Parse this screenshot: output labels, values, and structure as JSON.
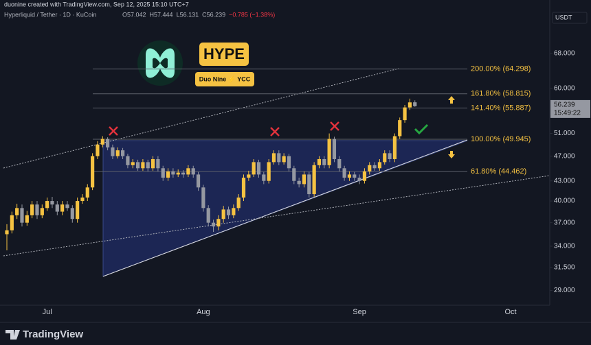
{
  "chart_data": {
    "type": "candlestick",
    "credit": "duonine created with TradingView.com, Sep 12, 2025 15:10 UTC+7",
    "symbol": "Hyperliquid / Tether · 1D · KuCoin",
    "ohlc_legend": [
      "O57.042",
      "H57.444",
      "L56.131",
      "C56.239",
      "−0.785 (−1.38%)"
    ],
    "currency": "USDT",
    "badge": "HYPE",
    "sub_badge": "Duo Nine ⚡ YCC",
    "countdown": "15:49:22",
    "watermark": "TradingView",
    "log_scale": true,
    "grid": false,
    "up_color": "#f5c242",
    "down_color": "#9598a1",
    "categories": [
      null,
      null,
      null,
      null,
      null,
      null,
      null,
      null,
      "Jul",
      null,
      null,
      null,
      null,
      null,
      null,
      null,
      null,
      null,
      null,
      null,
      null,
      null,
      null,
      null,
      null,
      null,
      null,
      null,
      null,
      null,
      null,
      null,
      null,
      null,
      null,
      null,
      null,
      null,
      null,
      "Aug",
      null,
      null,
      null,
      null,
      null,
      null,
      null,
      null,
      null,
      null,
      null,
      null,
      null,
      null,
      null,
      null,
      null,
      null,
      null,
      null,
      null,
      null,
      null,
      null,
      null,
      null,
      null,
      null,
      null,
      null,
      "Sep",
      null,
      null,
      null,
      null,
      null,
      null,
      null,
      null,
      null,
      null,
      null,
      null,
      null,
      null,
      null,
      null,
      null,
      null,
      null,
      null,
      null,
      null,
      null,
      null,
      null,
      null,
      null,
      null,
      null,
      "Oct",
      null,
      null,
      null,
      null,
      null,
      null,
      null
    ],
    "open": [
      35.5,
      36,
      38,
      39,
      37,
      38,
      39.5,
      38,
      39,
      40,
      39.5,
      38.5,
      39.5,
      39,
      37.5,
      40,
      40.5,
      42,
      47,
      49,
      50,
      48.5,
      47,
      48,
      47,
      45.5,
      46,
      45,
      46,
      45,
      46.5,
      45,
      43.5,
      44.5,
      44,
      44.3,
      44,
      45,
      44,
      42,
      39,
      37,
      36.5,
      37.5,
      38.8,
      38,
      39,
      40.5,
      43.5,
      44,
      46,
      44,
      43,
      46,
      47.5,
      46,
      47,
      45,
      43,
      42.5,
      44,
      41,
      45.5,
      46.5,
      45.5,
      50,
      46.5,
      45,
      43.5,
      44,
      43.5,
      43,
      44.5,
      45.5,
      45,
      46,
      47.5,
      46.5,
      50.5,
      53.5,
      56,
      57.042,
      null,
      null,
      null,
      null,
      null,
      null,
      null,
      null,
      null,
      null,
      null,
      null,
      null,
      null,
      null,
      null,
      null,
      null,
      null,
      null,
      null,
      null,
      null,
      null,
      null,
      null
    ],
    "high": [
      36.8,
      38.5,
      39.6,
      39.5,
      38.6,
      40,
      40,
      39.5,
      40.5,
      40.6,
      40,
      40,
      40,
      39.4,
      40.5,
      41,
      42.5,
      47.5,
      49.6,
      50.5,
      50.3,
      49,
      48.5,
      48.4,
      47.4,
      46.5,
      46.4,
      46.5,
      46.4,
      47,
      47,
      45.4,
      45,
      45,
      44.8,
      44.7,
      45.5,
      45.4,
      44.4,
      42.4,
      39.4,
      37.4,
      38,
      39.3,
      39.2,
      39.5,
      41,
      44,
      44.6,
      46.5,
      46.4,
      44.4,
      46.5,
      48,
      48,
      47.5,
      47.4,
      45.4,
      43.5,
      44.5,
      44.4,
      46,
      47,
      47,
      51,
      50.4,
      47,
      45.4,
      44.5,
      44.4,
      44,
      45,
      46,
      46,
      46.5,
      48,
      48,
      51,
      54,
      56.5,
      57.8,
      57.444,
      null,
      null,
      null,
      null,
      null,
      null,
      null,
      null,
      null,
      null,
      null,
      null,
      null,
      null,
      null,
      null,
      null,
      null,
      null,
      null,
      null,
      null,
      null,
      null,
      null,
      null
    ],
    "low": [
      33.5,
      35.6,
      37.5,
      36.5,
      36.6,
      37.6,
      37.5,
      37.6,
      38.6,
      39,
      38,
      38,
      38.6,
      37,
      37,
      39.6,
      40,
      41.6,
      46.5,
      48.5,
      48,
      46.5,
      46.6,
      46.5,
      45,
      45,
      44.6,
      44.6,
      44.5,
      44.6,
      44.5,
      43,
      43,
      43.5,
      43.6,
      43.5,
      43.6,
      43.5,
      41.5,
      38.5,
      36.5,
      35.8,
      36,
      37,
      37.5,
      37.6,
      38.6,
      40,
      43,
      43.6,
      43.5,
      42.5,
      42.6,
      45.6,
      45.5,
      45.6,
      44.5,
      42.5,
      42,
      42,
      40.5,
      40.6,
      45,
      45,
      45,
      46,
      44.5,
      43,
      43,
      43,
      42.5,
      42.6,
      44,
      44.6,
      44.6,
      45.6,
      46,
      46,
      50,
      53,
      55.5,
      56.131,
      null,
      null,
      null,
      null,
      null,
      null,
      null,
      null,
      null,
      null,
      null,
      null,
      null,
      null,
      null,
      null,
      null,
      null,
      null,
      null,
      null,
      null,
      null,
      null,
      null,
      null
    ],
    "close": [
      36,
      38,
      39,
      37,
      38,
      39.5,
      38,
      39,
      40,
      39.5,
      38.5,
      39.5,
      39,
      37.5,
      40,
      40.5,
      42,
      47,
      49,
      50,
      48.5,
      47,
      48,
      47,
      45.5,
      46,
      45,
      46,
      45,
      46.5,
      45,
      43.5,
      44.5,
      44,
      44.3,
      44,
      45,
      44,
      42,
      39,
      37,
      36.5,
      37.5,
      38.8,
      38,
      39,
      40.5,
      43.5,
      44,
      46,
      44,
      43,
      46,
      47.5,
      46,
      47,
      45,
      43,
      42.5,
      44,
      41,
      45.5,
      46.5,
      45.5,
      50,
      46.5,
      45,
      43.5,
      44,
      43.5,
      43,
      44.5,
      45.5,
      45,
      46,
      47.5,
      46.5,
      50.5,
      53.5,
      56,
      57.024,
      56.239,
      null,
      null,
      null,
      null,
      null,
      null,
      null,
      null,
      null,
      null,
      null,
      null,
      null,
      null,
      null,
      null,
      null,
      null,
      null,
      null,
      null,
      null,
      null,
      null,
      null,
      null
    ],
    "ylim": [
      27.5,
      82.4
    ],
    "yticks": [
      {
        "value": 29,
        "label": "29.000"
      },
      {
        "value": 31.5,
        "label": "31.500"
      },
      {
        "value": 34,
        "label": "34.000"
      },
      {
        "value": 37,
        "label": "37.000"
      },
      {
        "value": 40,
        "label": "40.000"
      },
      {
        "value": 43,
        "label": "43.000"
      },
      {
        "value": 47,
        "label": "47.000"
      },
      {
        "value": 51,
        "label": "51.000"
      },
      {
        "value": 60,
        "label": "60.000"
      },
      {
        "value": 68,
        "label": "68.000"
      }
    ],
    "fib_levels": [
      {
        "value": 64.298,
        "label": "200.00% (64.298)"
      },
      {
        "value": 58.815,
        "label": "161.80% (58.815)"
      },
      {
        "value": 55.887,
        "label": "141.40% (55.887)"
      },
      {
        "value": 49.945,
        "label": "100.00% (49.945)"
      },
      {
        "value": 44.462,
        "label": "61.80% (44.462)"
      }
    ]
  }
}
